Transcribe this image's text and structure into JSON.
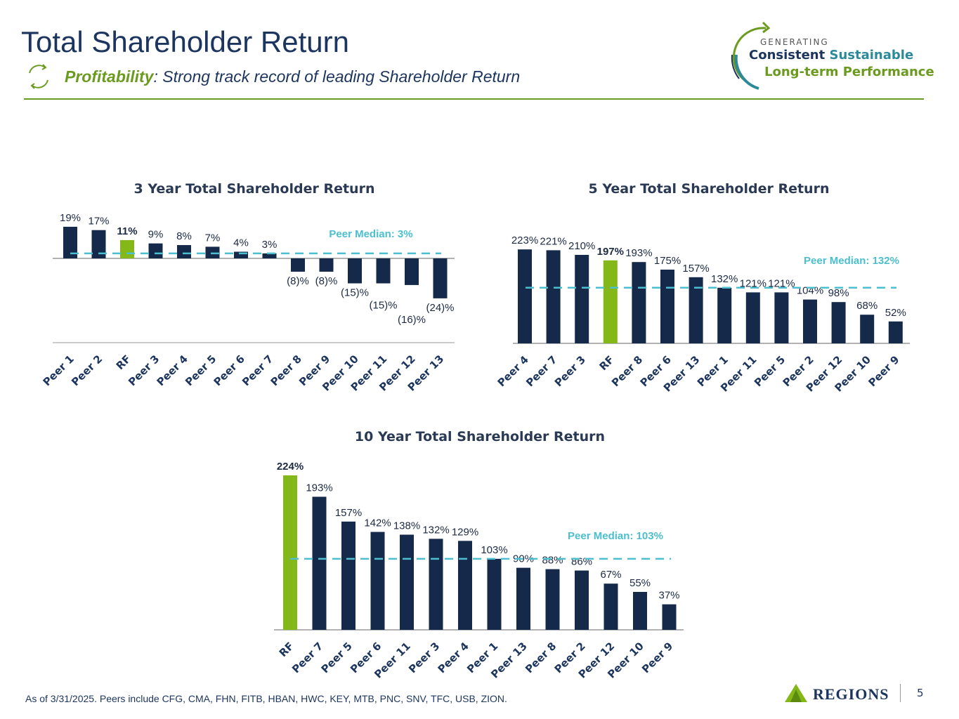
{
  "header": {
    "title": "Total Shareholder Return",
    "subtitle_bold": "Profitability",
    "subtitle_rest": ": Strong track record of leading Shareholder Return"
  },
  "logo": {
    "generating": "GENERATING",
    "line1a": "Consistent",
    "line1b": "Sustainable",
    "line2": "Long-term Performance"
  },
  "footer": {
    "note": "As of 3/31/2025. Peers include CFG, CMA, FHN, FITB, HBAN, HWC, KEY, MTB, PNC, SNV, TFC, USB, ZION.",
    "brand": "Regions",
    "page": "5"
  },
  "colors": {
    "peer": "#15294b",
    "rf": "#84b818",
    "median": "#4bbfcf",
    "title": "#1c355e",
    "rule": "#6a9b1e"
  },
  "chart_data": [
    {
      "type": "bar",
      "title": "3 Year Total Shareholder Return",
      "categories": [
        "Peer 1",
        "Peer 2",
        "RF",
        "Peer 3",
        "Peer 4",
        "Peer 5",
        "Peer 6",
        "Peer 7",
        "Peer 8",
        "Peer 9",
        "Peer 10",
        "Peer 11",
        "Peer 12",
        "Peer 13"
      ],
      "values": [
        19,
        17,
        11,
        9,
        8,
        7,
        4,
        3,
        -8,
        -8,
        -15,
        -15,
        -16,
        -24
      ],
      "labels": [
        "19%",
        "17%",
        "11%",
        "9%",
        "8%",
        "7%",
        "4%",
        "3%",
        "(8)%",
        "(8)%",
        "(15)%",
        "(15)%",
        "(16)%",
        "(24)%"
      ],
      "median": 3,
      "median_label": "Peer Median: 3%",
      "highlight": "RF",
      "unit": "%"
    },
    {
      "type": "bar",
      "title": "5 Year Total Shareholder Return",
      "categories": [
        "Peer 4",
        "Peer 7",
        "Peer 3",
        "RF",
        "Peer 8",
        "Peer 6",
        "Peer 13",
        "Peer 1",
        "Peer 11",
        "Peer 5",
        "Peer 2",
        "Peer 12",
        "Peer 10",
        "Peer 9"
      ],
      "values": [
        223,
        221,
        210,
        197,
        193,
        175,
        157,
        132,
        121,
        121,
        104,
        98,
        68,
        52
      ],
      "labels": [
        "223%",
        "221%",
        "210%",
        "197%",
        "193%",
        "175%",
        "157%",
        "132%",
        "121%",
        "121%",
        "104%",
        "98%",
        "68%",
        "52%"
      ],
      "median": 132,
      "median_label": "Peer Median: 132%",
      "highlight": "RF",
      "unit": "%"
    },
    {
      "type": "bar",
      "title": "10 Year Total Shareholder Return",
      "categories": [
        "RF",
        "Peer 7",
        "Peer 5",
        "Peer 6",
        "Peer 11",
        "Peer 3",
        "Peer 4",
        "Peer 1",
        "Peer 13",
        "Peer 8",
        "Peer 2",
        "Peer 12",
        "Peer 10",
        "Peer 9"
      ],
      "values": [
        224,
        193,
        157,
        142,
        138,
        132,
        129,
        103,
        90,
        88,
        86,
        67,
        55,
        37
      ],
      "labels": [
        "224%",
        "193%",
        "157%",
        "142%",
        "138%",
        "132%",
        "129%",
        "103%",
        "90%",
        "88%",
        "86%",
        "67%",
        "55%",
        "37%"
      ],
      "median": 103,
      "median_label": "Peer Median: 103%",
      "highlight": "RF",
      "unit": "%"
    }
  ]
}
